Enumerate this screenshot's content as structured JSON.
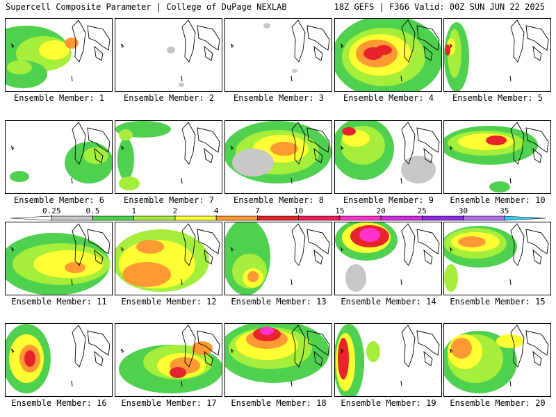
{
  "header": {
    "left_title": "Supercell Composite Parameter | College of DuPage NEXLAB",
    "right_title": "18Z GEFS | F366 Valid: 00Z SUN JUN 22 2025"
  },
  "panels": [
    {
      "label": "Ensemble Member: 1",
      "blobs": [
        [
          30,
          45,
          60,
          35,
          "#4fd14f"
        ],
        [
          55,
          50,
          40,
          25,
          "#a6ee3c"
        ],
        [
          70,
          45,
          22,
          14,
          "#ffff33"
        ],
        [
          95,
          35,
          10,
          8,
          "#ff9933"
        ],
        [
          25,
          80,
          35,
          20,
          "#4fd14f"
        ],
        [
          20,
          70,
          18,
          10,
          "#a6ee3c"
        ]
      ]
    },
    {
      "label": "Ensemble Member: 2",
      "blobs": [
        [
          80,
          45,
          6,
          5,
          "#c8c8c8"
        ],
        [
          95,
          95,
          4,
          3,
          "#c8c8c8"
        ]
      ]
    },
    {
      "label": "Ensemble Member: 3",
      "blobs": [
        [
          60,
          10,
          5,
          4,
          "#c8c8c8"
        ],
        [
          100,
          75,
          4,
          3,
          "#c8c8c8"
        ]
      ]
    },
    {
      "label": "Ensemble Member: 4",
      "blobs": [
        [
          75,
          55,
          80,
          60,
          "#4fd14f"
        ],
        [
          70,
          55,
          60,
          42,
          "#a6ee3c"
        ],
        [
          65,
          52,
          45,
          30,
          "#ffff33"
        ],
        [
          60,
          50,
          30,
          20,
          "#ff9933"
        ],
        [
          55,
          50,
          14,
          9,
          "#e8232b"
        ],
        [
          70,
          45,
          12,
          7,
          "#e8232b"
        ]
      ]
    },
    {
      "label": "Ensemble Member: 5",
      "blobs": [
        [
          18,
          55,
          18,
          50,
          "#4fd14f"
        ],
        [
          15,
          50,
          10,
          35,
          "#a6ee3c"
        ],
        [
          10,
          40,
          6,
          12,
          "#ffff33"
        ],
        [
          5,
          45,
          4,
          8,
          "#e8232b"
        ]
      ]
    },
    {
      "label": "Ensemble Member: 6",
      "blobs": [
        [
          120,
          60,
          35,
          30,
          "#4fd14f"
        ],
        [
          130,
          50,
          18,
          12,
          "#a6ee3c"
        ],
        [
          20,
          80,
          14,
          8,
          "#4fd14f"
        ]
      ]
    },
    {
      "label": "Ensemble Member: 7",
      "blobs": [
        [
          40,
          12,
          40,
          12,
          "#4fd14f"
        ],
        [
          15,
          55,
          12,
          30,
          "#4fd14f"
        ],
        [
          20,
          90,
          15,
          10,
          "#a6ee3c"
        ],
        [
          15,
          20,
          10,
          8,
          "#a6ee3c"
        ]
      ]
    },
    {
      "label": "Ensemble Member: 8",
      "blobs": [
        [
          75,
          45,
          78,
          45,
          "#4fd14f"
        ],
        [
          75,
          45,
          60,
          32,
          "#a6ee3c"
        ],
        [
          80,
          40,
          40,
          20,
          "#ffff33"
        ],
        [
          85,
          40,
          20,
          10,
          "#ff9933"
        ],
        [
          40,
          60,
          30,
          20,
          "#c8c8c8"
        ]
      ]
    },
    {
      "label": "Ensemble Member: 9",
      "blobs": [
        [
          40,
          40,
          45,
          45,
          "#4fd14f"
        ],
        [
          40,
          35,
          32,
          28,
          "#a6ee3c"
        ],
        [
          30,
          25,
          20,
          12,
          "#ffff33"
        ],
        [
          20,
          15,
          10,
          6,
          "#e8232b"
        ],
        [
          120,
          70,
          25,
          20,
          "#c8c8c8"
        ]
      ]
    },
    {
      "label": "Ensemble Member: 10",
      "blobs": [
        [
          65,
          35,
          70,
          28,
          "#4fd14f"
        ],
        [
          60,
          32,
          55,
          18,
          "#a6ee3c"
        ],
        [
          60,
          30,
          40,
          12,
          "#ffff33"
        ],
        [
          75,
          28,
          15,
          7,
          "#e8232b"
        ],
        [
          80,
          95,
          15,
          8,
          "#4fd14f"
        ]
      ]
    },
    {
      "label": "Ensemble Member: 11",
      "blobs": [
        [
          70,
          60,
          80,
          45,
          "#4fd14f"
        ],
        [
          80,
          60,
          70,
          30,
          "#a6ee3c"
        ],
        [
          90,
          60,
          50,
          20,
          "#ffff33"
        ],
        [
          100,
          65,
          15,
          8,
          "#ff9933"
        ]
      ]
    },
    {
      "label": "Ensemble Member: 12",
      "blobs": [
        [
          65,
          55,
          70,
          45,
          "#a6ee3c"
        ],
        [
          60,
          60,
          55,
          35,
          "#ffff33"
        ],
        [
          45,
          75,
          35,
          18,
          "#ff9933"
        ],
        [
          50,
          35,
          20,
          10,
          "#ff9933"
        ]
      ]
    },
    {
      "label": "Ensemble Member: 13",
      "blobs": [
        [
          30,
          50,
          35,
          55,
          "#4fd14f"
        ],
        [
          35,
          70,
          25,
          25,
          "#a6ee3c"
        ],
        [
          40,
          80,
          15,
          14,
          "#ffff33"
        ],
        [
          40,
          78,
          8,
          8,
          "#ff9933"
        ]
      ]
    },
    {
      "label": "Ensemble Member: 14",
      "blobs": [
        [
          45,
          25,
          45,
          30,
          "#4fd14f"
        ],
        [
          45,
          22,
          35,
          22,
          "#ffff33"
        ],
        [
          50,
          20,
          28,
          16,
          "#e8232b"
        ],
        [
          50,
          18,
          15,
          10,
          "#ff33cc"
        ],
        [
          30,
          80,
          15,
          20,
          "#c8c8c8"
        ]
      ]
    },
    {
      "label": "Ensemble Member: 15",
      "blobs": [
        [
          50,
          35,
          55,
          30,
          "#4fd14f"
        ],
        [
          45,
          30,
          45,
          22,
          "#a6ee3c"
        ],
        [
          45,
          28,
          35,
          14,
          "#ffff33"
        ],
        [
          40,
          28,
          20,
          8,
          "#ff9933"
        ],
        [
          10,
          80,
          10,
          20,
          "#a6ee3c"
        ]
      ]
    },
    {
      "label": "Ensemble Member: 16",
      "blobs": [
        [
          30,
          50,
          35,
          50,
          "#4fd14f"
        ],
        [
          30,
          50,
          25,
          35,
          "#ffff33"
        ],
        [
          35,
          50,
          15,
          20,
          "#ff9933"
        ],
        [
          35,
          50,
          8,
          12,
          "#e8232b"
        ]
      ]
    },
    {
      "label": "Ensemble Member: 17",
      "blobs": [
        [
          80,
          65,
          75,
          35,
          "#4fd14f"
        ],
        [
          90,
          55,
          50,
          25,
          "#a6ee3c"
        ],
        [
          95,
          60,
          35,
          18,
          "#ffff33"
        ],
        [
          100,
          60,
          22,
          12,
          "#ff9933"
        ],
        [
          90,
          70,
          12,
          8,
          "#e8232b"
        ],
        [
          125,
          35,
          15,
          10,
          "#ff9933"
        ]
      ]
    },
    {
      "label": "Ensemble Member: 18",
      "blobs": [
        [
          70,
          40,
          80,
          45,
          "#4fd14f"
        ],
        [
          65,
          35,
          60,
          30,
          "#a6ee3c"
        ],
        [
          60,
          30,
          45,
          22,
          "#ffff33"
        ],
        [
          60,
          22,
          30,
          14,
          "#ff9933"
        ],
        [
          60,
          15,
          20,
          10,
          "#e8232b"
        ],
        [
          60,
          10,
          10,
          6,
          "#ff33cc"
        ]
      ]
    },
    {
      "label": "Ensemble Member: 19",
      "blobs": [
        [
          20,
          55,
          22,
          55,
          "#4fd14f"
        ],
        [
          15,
          55,
          14,
          42,
          "#ffff33"
        ],
        [
          12,
          50,
          8,
          30,
          "#e8232b"
        ],
        [
          55,
          40,
          10,
          15,
          "#a6ee3c"
        ]
      ]
    },
    {
      "label": "Ensemble Member: 20",
      "blobs": [
        [
          50,
          55,
          55,
          45,
          "#4fd14f"
        ],
        [
          45,
          50,
          40,
          35,
          "#a6ee3c"
        ],
        [
          30,
          40,
          25,
          25,
          "#ffff33"
        ],
        [
          25,
          35,
          15,
          15,
          "#ff9933"
        ],
        [
          95,
          25,
          20,
          10,
          "#ffff33"
        ]
      ]
    }
  ],
  "colorbar": {
    "labels": [
      "0.25",
      "0.5",
      "1",
      "2",
      "4",
      "7",
      "10",
      "15",
      "20",
      "25",
      "30",
      "35"
    ],
    "colors": [
      "#ffffff",
      "#c8c8c8",
      "#4fd14f",
      "#a6ee3c",
      "#ffff33",
      "#ff9933",
      "#e8232b",
      "#f01d5a",
      "#ff33cc",
      "#d22fe0",
      "#8c2be2",
      "#b46ee6",
      "#33ccff"
    ]
  }
}
